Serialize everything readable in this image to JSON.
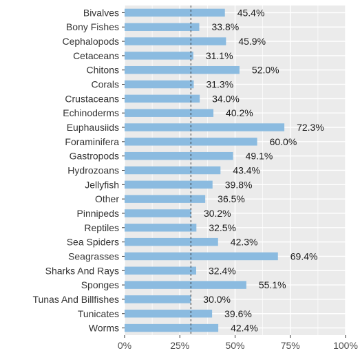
{
  "chart_data": {
    "type": "bar",
    "orientation": "horizontal",
    "categories": [
      "Bivalves",
      "Bony Fishes",
      "Cephalopods",
      "Cetaceans",
      "Chitons",
      "Corals",
      "Crustaceans",
      "Echinoderms",
      "Euphausiids",
      "Foraminifera",
      "Gastropods",
      "Hydrozoans",
      "Jellyfish",
      "Other",
      "Pinnipeds",
      "Reptiles",
      "Sea Spiders",
      "Seagrasses",
      "Sharks And Rays",
      "Sponges",
      "Tunas And Billfishes",
      "Tunicates",
      "Worms"
    ],
    "values": [
      45.4,
      33.8,
      45.9,
      31.1,
      52.0,
      31.3,
      34.0,
      40.2,
      72.3,
      60.0,
      49.1,
      43.4,
      39.8,
      36.5,
      30.2,
      32.5,
      42.3,
      69.4,
      32.4,
      55.1,
      30.0,
      39.6,
      42.4
    ],
    "data_labels": [
      "45.4%",
      "33.8%",
      "45.9%",
      "31.1%",
      "52.0%",
      "31.3%",
      "34.0%",
      "40.2%",
      "72.3%",
      "60.0%",
      "49.1%",
      "43.4%",
      "39.8%",
      "36.5%",
      "30.2%",
      "32.5%",
      "42.3%",
      "69.4%",
      "32.4%",
      "55.1%",
      "30.0%",
      "39.6%",
      "42.4%"
    ],
    "xlim": [
      0,
      100
    ],
    "x_ticks": [
      0,
      25,
      50,
      75,
      100
    ],
    "x_tick_labels": [
      "0%",
      "25%",
      "50%",
      "75%",
      "100%"
    ],
    "reference_line": 30,
    "title": "",
    "xlabel": "",
    "ylabel": "",
    "grid": true,
    "legend": "none",
    "bar_color": "#8bbbe0",
    "panel_color": "#ebebeb",
    "grid_color": "#ffffff",
    "reference_line_color": "#333333"
  }
}
